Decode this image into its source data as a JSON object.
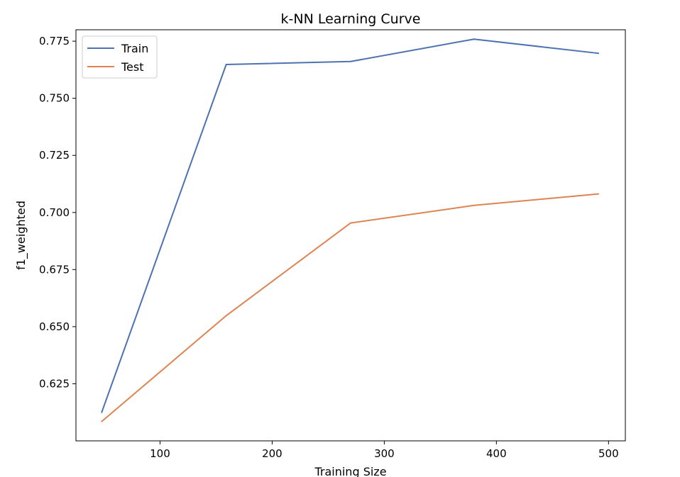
{
  "chart_data": {
    "type": "line",
    "title": "k-NN Learning Curve",
    "xlabel": "Training Size",
    "ylabel": "f1_weighted",
    "xlim": [
      25,
      515
    ],
    "ylim": [
      0.6,
      0.78
    ],
    "x_ticks": [
      100,
      200,
      300,
      400,
      500
    ],
    "y_ticks": [
      0.625,
      0.65,
      0.675,
      0.7,
      0.725,
      0.75,
      0.775
    ],
    "x_tick_labels": [
      "100",
      "200",
      "300",
      "400",
      "500"
    ],
    "y_tick_labels": [
      "0.625",
      "0.650",
      "0.675",
      "0.700",
      "0.725",
      "0.750",
      "0.775"
    ],
    "x": [
      48,
      159,
      270,
      380,
      491
    ],
    "series": [
      {
        "name": "Train",
        "color": "#4c72b0",
        "values": [
          0.6125,
          0.7648,
          0.7661,
          0.7759,
          0.7697
        ]
      },
      {
        "name": "Test",
        "color": "#dd8452",
        "values": [
          0.6085,
          0.6548,
          0.6954,
          0.7031,
          0.7081
        ]
      }
    ],
    "grid": false,
    "legend_position": "top-left"
  }
}
